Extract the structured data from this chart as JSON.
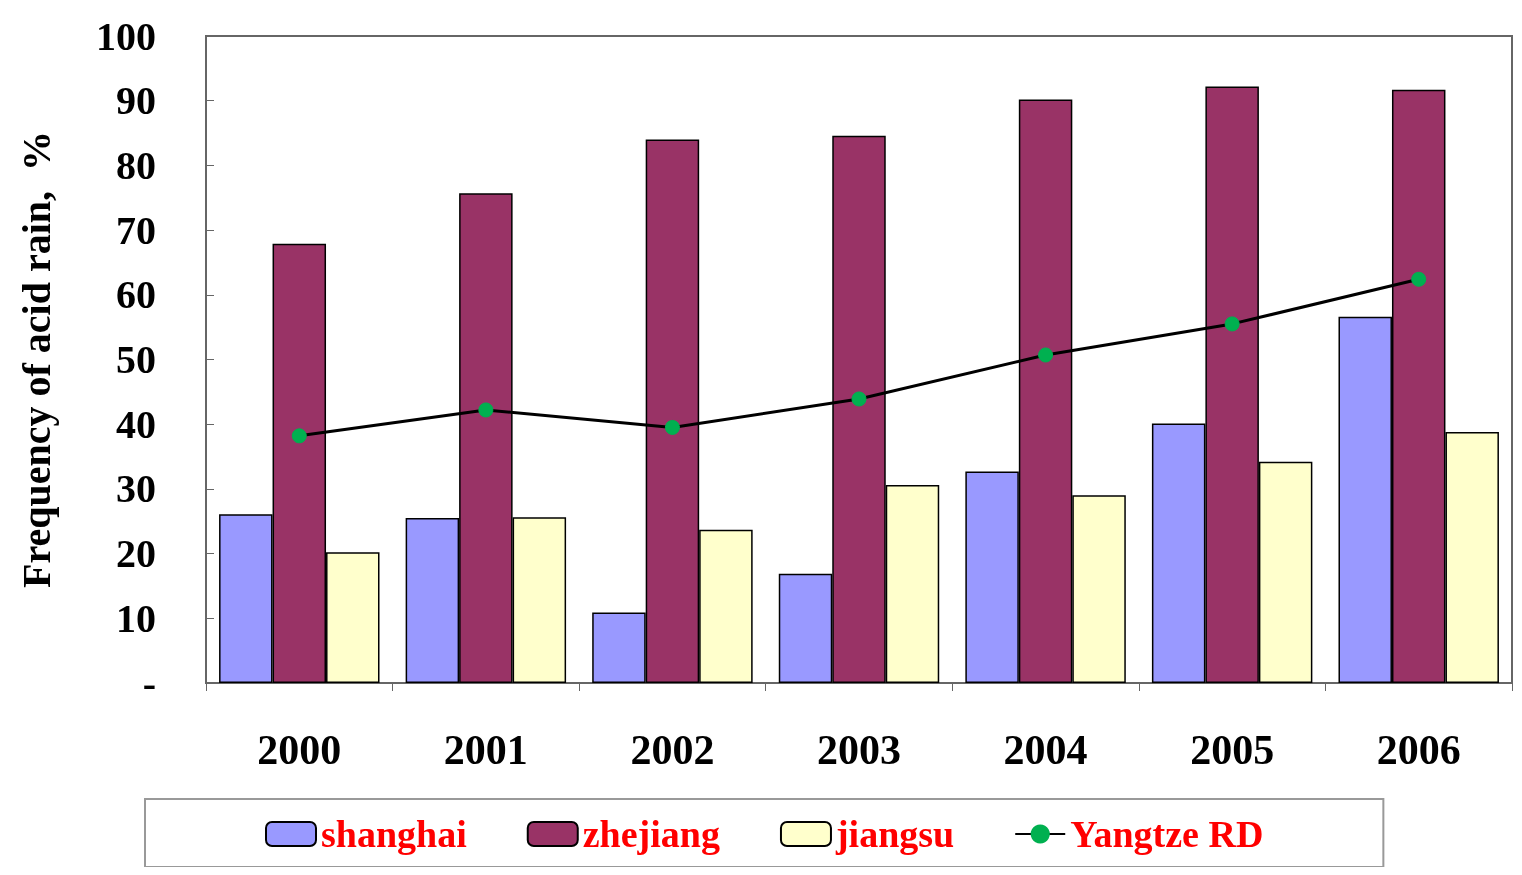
{
  "chart_data": {
    "type": "bar",
    "ylabel": "Frequency of acid rain,  %",
    "categories": [
      "2000",
      "2001",
      "2002",
      "2003",
      "2004",
      "2005",
      "2006"
    ],
    "series": [
      {
        "name": "shanghai",
        "color": "#9999ff",
        "values": [
          26.1,
          25.5,
          10.9,
          16.9,
          32.7,
          40.1,
          56.6
        ]
      },
      {
        "name": "zhejiang",
        "color": "#993366",
        "values": [
          67.9,
          75.7,
          84.0,
          84.6,
          90.2,
          92.2,
          91.7
        ]
      },
      {
        "name": "jiangsu",
        "color": "#ffffcc",
        "values": [
          20.2,
          25.6,
          23.7,
          30.6,
          29.0,
          34.2,
          38.8
        ]
      },
      {
        "name": "Yangtze RD",
        "type": "line",
        "color": "#00b050",
        "values": [
          38.2,
          42.2,
          39.5,
          43.9,
          50.7,
          55.5,
          62.4
        ]
      }
    ],
    "ylim": [
      0,
      100
    ],
    "yticks": [
      {
        "value": 0,
        "label": "-"
      },
      10,
      20,
      30,
      40,
      50,
      60,
      70,
      80,
      90,
      100
    ],
    "grid": false,
    "legend": "bottom",
    "marker": "circle",
    "line_style": "solid"
  }
}
